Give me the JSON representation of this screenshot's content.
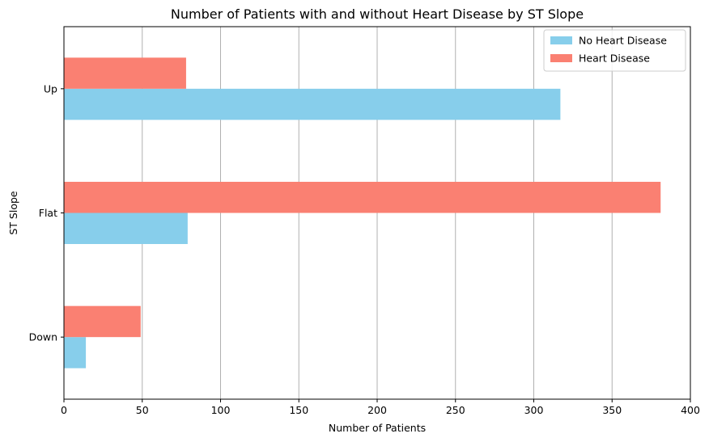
{
  "chart_data": {
    "type": "bar",
    "orientation": "horizontal",
    "title": "Number of Patients with and without Heart Disease by ST Slope",
    "xlabel": "Number of Patients",
    "ylabel": "ST Slope",
    "categories": [
      "Down",
      "Flat",
      "Up"
    ],
    "series": [
      {
        "name": "No Heart Disease",
        "values": [
          14,
          79,
          317
        ],
        "color": "#87ceeb"
      },
      {
        "name": "Heart Disease",
        "values": [
          49,
          381,
          78
        ],
        "color": "#fa8072"
      }
    ],
    "xlim": [
      0,
      400
    ],
    "xticks": [
      0,
      50,
      100,
      150,
      200,
      250,
      300,
      350,
      400
    ],
    "grid": "x-only",
    "legend_position": "upper-right"
  }
}
